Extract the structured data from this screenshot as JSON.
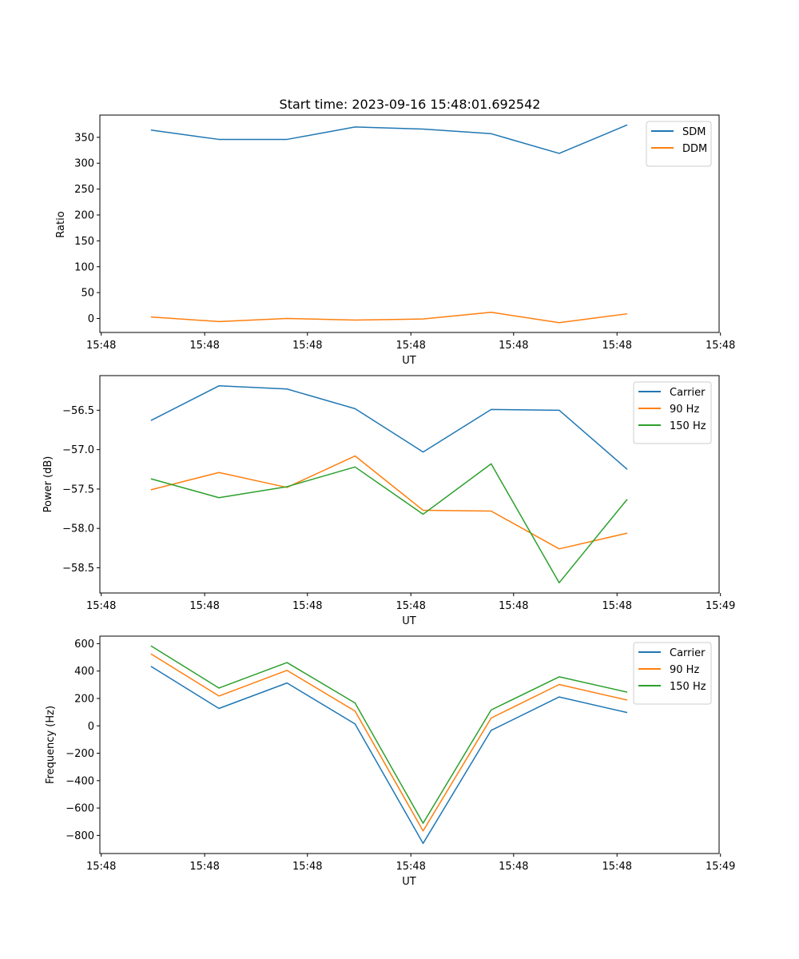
{
  "chart_data": [
    {
      "type": "line",
      "title": "Start time: 2023-09-16 15:48:01.692542",
      "xlabel": "UT",
      "ylabel": "Ratio",
      "x": [
        0,
        1,
        2,
        3,
        4,
        5,
        6,
        7
      ],
      "xlim": [
        -0.75,
        8.35
      ],
      "x_ticks": [
        -0.73,
        0.79,
        2.3,
        3.82,
        5.33,
        6.85,
        8.37
      ],
      "x_tick_labels": [
        "15:48",
        "15:48",
        "15:48",
        "15:48",
        "15:48",
        "15:48",
        "15:48"
      ],
      "ylim": [
        -27,
        393
      ],
      "y_ticks": [
        0,
        50,
        100,
        150,
        200,
        250,
        300,
        350
      ],
      "y_tick_labels": [
        "0",
        "50",
        "100",
        "150",
        "200",
        "250",
        "300",
        "350"
      ],
      "legend_position": "top-right",
      "grid": false,
      "series": [
        {
          "name": "SDM",
          "color": "#1f77b4",
          "values": [
            364,
            346,
            346,
            370,
            366,
            357,
            319,
            374
          ]
        },
        {
          "name": "DDM",
          "color": "#ff7f0e",
          "values": [
            3,
            -6,
            0,
            -3,
            -1,
            12,
            -8,
            9
          ]
        }
      ]
    },
    {
      "type": "line",
      "title": "",
      "xlabel": "UT",
      "ylabel": "Power (dB)",
      "x": [
        0,
        1,
        2,
        3,
        4,
        5,
        6,
        7
      ],
      "xlim": [
        -0.75,
        8.35
      ],
      "x_ticks": [
        -0.73,
        0.79,
        2.3,
        3.82,
        5.33,
        6.85,
        8.37
      ],
      "x_tick_labels": [
        "15:48",
        "15:48",
        "15:48",
        "15:48",
        "15:48",
        "15:48",
        "15:49"
      ],
      "ylim": [
        -58.82,
        -56.06
      ],
      "y_ticks": [
        -58.5,
        -58.0,
        -57.5,
        -57.0,
        -56.5
      ],
      "y_tick_labels": [
        "−58.5",
        "−58.0",
        "−57.5",
        "−57.0",
        "−56.5"
      ],
      "legend_position": "top-right",
      "grid": false,
      "series": [
        {
          "name": "Carrier",
          "color": "#1f77b4",
          "values": [
            -56.63,
            -56.19,
            -56.23,
            -56.48,
            -57.03,
            -56.49,
            -56.5,
            -57.25
          ]
        },
        {
          "name": "90 Hz",
          "color": "#ff7f0e",
          "values": [
            -57.51,
            -57.29,
            -57.48,
            -57.08,
            -57.77,
            -57.78,
            -58.26,
            -58.06
          ]
        },
        {
          "name": "150 Hz",
          "color": "#2ca02c",
          "values": [
            -57.37,
            -57.61,
            -57.47,
            -57.22,
            -57.82,
            -57.18,
            -58.69,
            -57.63
          ]
        }
      ]
    },
    {
      "type": "line",
      "title": "",
      "xlabel": "UT",
      "ylabel": "Frequency (Hz)",
      "x": [
        0,
        1,
        2,
        3,
        4,
        5,
        6,
        7
      ],
      "xlim": [
        -0.75,
        8.35
      ],
      "x_ticks": [
        -0.73,
        0.79,
        2.3,
        3.82,
        5.33,
        6.85,
        8.37
      ],
      "x_tick_labels": [
        "15:48",
        "15:48",
        "15:48",
        "15:48",
        "15:48",
        "15:48",
        "15:49"
      ],
      "ylim": [
        -932,
        655
      ],
      "y_ticks": [
        -800,
        -600,
        -400,
        -200,
        0,
        200,
        400,
        600
      ],
      "y_tick_labels": [
        "−800",
        "−600",
        "−400",
        "−200",
        "0",
        "200",
        "400",
        "600"
      ],
      "legend_position": "top-right",
      "grid": false,
      "series": [
        {
          "name": "Carrier",
          "color": "#1f77b4",
          "values": [
            435,
            127,
            313,
            14,
            -858,
            -33,
            211,
            97
          ]
        },
        {
          "name": "90 Hz",
          "color": "#ff7f0e",
          "values": [
            526,
            218,
            405,
            108,
            -767,
            57,
            302,
            188
          ]
        },
        {
          "name": "150 Hz",
          "color": "#2ca02c",
          "values": [
            584,
            276,
            462,
            167,
            -711,
            116,
            358,
            246
          ]
        }
      ]
    }
  ]
}
